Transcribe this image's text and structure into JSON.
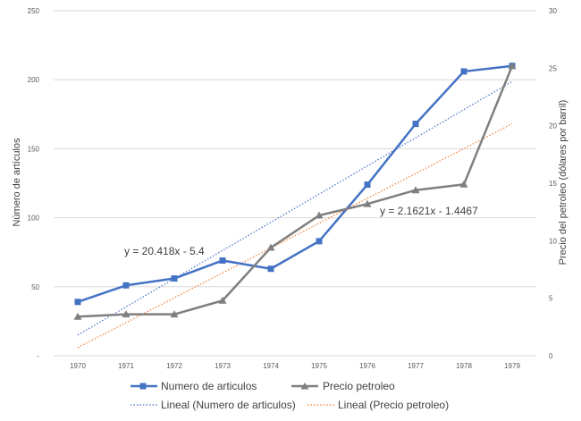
{
  "chart_data": {
    "type": "line",
    "categories": [
      "1970",
      "1971",
      "1972",
      "1973",
      "1974",
      "1975",
      "1976",
      "1977",
      "1978",
      "1979"
    ],
    "series": [
      {
        "name": "Numero de articulos",
        "axis": "left",
        "marker": "square",
        "color": "#4472c4",
        "values": [
          39,
          51,
          56,
          69,
          63,
          83,
          124,
          168,
          206,
          210
        ]
      },
      {
        "name": "Precio petroleo",
        "axis": "right",
        "marker": "triangle",
        "color": "#7f7f7f",
        "values": [
          3.4,
          3.6,
          3.6,
          4.8,
          9.4,
          12.2,
          13.2,
          14.4,
          14.9,
          25.2
        ]
      }
    ],
    "trendlines": [
      {
        "name": "Lineal (Numero de articulos)",
        "axis": "left",
        "color": "#4472c4",
        "slope": 20.418,
        "intercept": -5.4,
        "equation": "y = 20.418x - 5.4"
      },
      {
        "name": "Lineal (Precio petroleo)",
        "axis": "right",
        "color": "#ed7d31",
        "slope": 2.1621,
        "intercept": -1.4467,
        "equation": "y = 2.1621x - 1.4467"
      }
    ],
    "y_left": {
      "label": "Número de artículos",
      "range": [
        0,
        250
      ],
      "ticks": [
        "-",
        "50",
        "100",
        "150",
        "200",
        "250"
      ]
    },
    "y_right": {
      "label": "Precio del petroleo (dólares por barril)",
      "range": [
        0,
        30
      ],
      "ticks": [
        "0",
        "5",
        "10",
        "15",
        "20",
        "25",
        "30"
      ]
    },
    "grid": "horizontal",
    "legend_position": "bottom"
  }
}
